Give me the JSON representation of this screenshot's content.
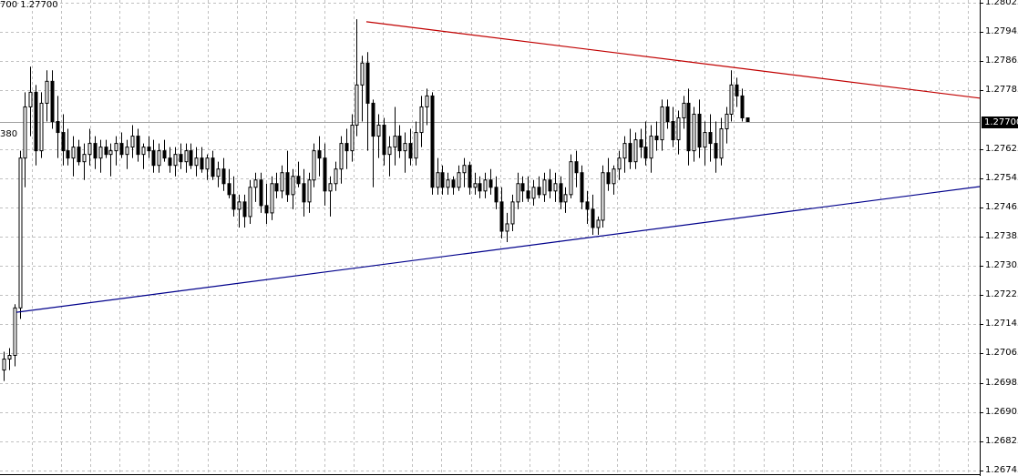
{
  "header": {
    "info_text": "700 1.27700",
    "left_text": "380"
  },
  "chart_data": {
    "type": "candlestick",
    "title": "",
    "xlabel": "",
    "ylabel": "",
    "ylim": [
      1.26745,
      1.28025
    ],
    "grid": true,
    "y_ticks": [
      "1.28025",
      "1.27945",
      "1.27865",
      "1.27785",
      "1.27625",
      "1.27545",
      "1.27465",
      "1.27385",
      "1.27305",
      "1.27225",
      "1.27145",
      "1.27065",
      "1.26985",
      "1.26905",
      "1.26825",
      "1.26745"
    ],
    "current_price": "1.27700",
    "colors": {
      "up_fill": "#ffffff",
      "down_fill": "#000000",
      "outline": "#000000",
      "resistance": "#c00000",
      "support": "#00008b",
      "grid": "#c0c0c0"
    },
    "trendlines": [
      {
        "kind": "resistance",
        "start_price": 1.27973,
        "end_price": 1.27764
      },
      {
        "kind": "support",
        "start_price": 1.27178,
        "end_price": 1.27522
      }
    ],
    "candles_ohlc": [
      [
        1.2702,
        1.2707,
        1.2699,
        1.2705
      ],
      [
        1.2705,
        1.2708,
        1.2702,
        1.2706
      ],
      [
        1.2706,
        1.272,
        1.2703,
        1.2719
      ],
      [
        1.2719,
        1.2762,
        1.2716,
        1.276
      ],
      [
        1.276,
        1.2778,
        1.2752,
        1.2774
      ],
      [
        1.2774,
        1.2785,
        1.2766,
        1.2778
      ],
      [
        1.2778,
        1.278,
        1.2758,
        1.2762
      ],
      [
        1.2762,
        1.2778,
        1.276,
        1.2775
      ],
      [
        1.2775,
        1.2784,
        1.277,
        1.2781
      ],
      [
        1.2781,
        1.2784,
        1.2768,
        1.277
      ],
      [
        1.277,
        1.2777,
        1.276,
        1.2767
      ],
      [
        1.2767,
        1.2772,
        1.2758,
        1.2762
      ],
      [
        1.2762,
        1.2768,
        1.2758,
        1.276
      ],
      [
        1.276,
        1.2766,
        1.2755,
        1.2763
      ],
      [
        1.2763,
        1.2765,
        1.2758,
        1.2759
      ],
      [
        1.2759,
        1.2764,
        1.2754,
        1.2761
      ],
      [
        1.2761,
        1.2768,
        1.2758,
        1.2764
      ],
      [
        1.2764,
        1.2766,
        1.2757,
        1.276
      ],
      [
        1.276,
        1.2765,
        1.2756,
        1.2763
      ],
      [
        1.2763,
        1.2765,
        1.276,
        1.2761
      ],
      [
        1.2761,
        1.2764,
        1.2755,
        1.2762
      ],
      [
        1.2762,
        1.2766,
        1.2758,
        1.2764
      ],
      [
        1.2764,
        1.2767,
        1.276,
        1.2761
      ],
      [
        1.2761,
        1.2765,
        1.2757,
        1.2763
      ],
      [
        1.2763,
        1.2769,
        1.276,
        1.2766
      ],
      [
        1.2766,
        1.2768,
        1.2759,
        1.2761
      ],
      [
        1.2761,
        1.2764,
        1.2757,
        1.2763
      ],
      [
        1.2763,
        1.2766,
        1.276,
        1.2762
      ],
      [
        1.2762,
        1.2765,
        1.2756,
        1.2758
      ],
      [
        1.2758,
        1.2764,
        1.2756,
        1.2762
      ],
      [
        1.2762,
        1.2765,
        1.2759,
        1.276
      ],
      [
        1.276,
        1.2763,
        1.2756,
        1.2758
      ],
      [
        1.2758,
        1.2763,
        1.2755,
        1.2761
      ],
      [
        1.2761,
        1.2764,
        1.2757,
        1.2759
      ],
      [
        1.2759,
        1.2764,
        1.2756,
        1.2762
      ],
      [
        1.2762,
        1.2764,
        1.2757,
        1.2758
      ],
      [
        1.2758,
        1.2763,
        1.2755,
        1.276
      ],
      [
        1.276,
        1.2763,
        1.2756,
        1.2757
      ],
      [
        1.2757,
        1.2761,
        1.2754,
        1.276
      ],
      [
        1.276,
        1.2762,
        1.2754,
        1.2755
      ],
      [
        1.2755,
        1.2759,
        1.2752,
        1.2757
      ],
      [
        1.2757,
        1.276,
        1.2751,
        1.2753
      ],
      [
        1.2753,
        1.2757,
        1.2749,
        1.275
      ],
      [
        1.275,
        1.2755,
        1.2744,
        1.2746
      ],
      [
        1.2746,
        1.275,
        1.2741,
        1.2748
      ],
      [
        1.2748,
        1.275,
        1.2741,
        1.2744
      ],
      [
        1.2744,
        1.2754,
        1.2742,
        1.2752
      ],
      [
        1.2752,
        1.2756,
        1.2748,
        1.2754
      ],
      [
        1.2754,
        1.2756,
        1.2745,
        1.2747
      ],
      [
        1.2747,
        1.2753,
        1.2742,
        1.2745
      ],
      [
        1.2745,
        1.2755,
        1.2743,
        1.2753
      ],
      [
        1.2753,
        1.2756,
        1.2749,
        1.2751
      ],
      [
        1.2751,
        1.2758,
        1.2749,
        1.2756
      ],
      [
        1.2756,
        1.2762,
        1.2748,
        1.275
      ],
      [
        1.275,
        1.2757,
        1.2746,
        1.2755
      ],
      [
        1.2755,
        1.2759,
        1.2752,
        1.2753
      ],
      [
        1.2753,
        1.2757,
        1.2744,
        1.2748
      ],
      [
        1.2748,
        1.2756,
        1.2745,
        1.2754
      ],
      [
        1.2754,
        1.2764,
        1.2752,
        1.2762
      ],
      [
        1.2762,
        1.2766,
        1.2755,
        1.276
      ],
      [
        1.276,
        1.2764,
        1.2747,
        1.2751
      ],
      [
        1.2751,
        1.2755,
        1.2744,
        1.2753
      ],
      [
        1.2753,
        1.2759,
        1.2751,
        1.2757
      ],
      [
        1.2757,
        1.2766,
        1.2753,
        1.2764
      ],
      [
        1.2764,
        1.2768,
        1.2757,
        1.2762
      ],
      [
        1.2762,
        1.2772,
        1.2759,
        1.2769
      ],
      [
        1.2769,
        1.2798,
        1.2766,
        1.278
      ],
      [
        1.278,
        1.2788,
        1.277,
        1.2786
      ],
      [
        1.2786,
        1.2789,
        1.2762,
        1.2775
      ],
      [
        1.2775,
        1.2776,
        1.2752,
        1.2766
      ],
      [
        1.2766,
        1.2772,
        1.276,
        1.2769
      ],
      [
        1.2769,
        1.2771,
        1.2758,
        1.2761
      ],
      [
        1.2761,
        1.2766,
        1.2755,
        1.2763
      ],
      [
        1.2763,
        1.2774,
        1.2758,
        1.2766
      ],
      [
        1.2766,
        1.2769,
        1.276,
        1.2762
      ],
      [
        1.2762,
        1.2767,
        1.2756,
        1.2764
      ],
      [
        1.2764,
        1.2768,
        1.2758,
        1.276
      ],
      [
        1.276,
        1.277,
        1.2758,
        1.2767
      ],
      [
        1.2767,
        1.2777,
        1.2763,
        1.2774
      ],
      [
        1.2774,
        1.2779,
        1.2769,
        1.2777
      ],
      [
        1.2777,
        1.2778,
        1.275,
        1.2752
      ],
      [
        1.2752,
        1.276,
        1.275,
        1.2756
      ],
      [
        1.2756,
        1.2758,
        1.275,
        1.2752
      ],
      [
        1.2752,
        1.2756,
        1.275,
        1.2754
      ],
      [
        1.2754,
        1.2755,
        1.275,
        1.2752
      ],
      [
        1.2752,
        1.2758,
        1.2751,
        1.2756
      ],
      [
        1.2756,
        1.276,
        1.2752,
        1.2758
      ],
      [
        1.2758,
        1.2759,
        1.275,
        1.2752
      ],
      [
        1.2752,
        1.2756,
        1.275,
        1.2753
      ],
      [
        1.2753,
        1.2755,
        1.2749,
        1.2751
      ],
      [
        1.2751,
        1.2756,
        1.2749,
        1.2754
      ],
      [
        1.2754,
        1.2757,
        1.275,
        1.2752
      ],
      [
        1.2752,
        1.2755,
        1.2746,
        1.2748
      ],
      [
        1.2748,
        1.2752,
        1.2738,
        1.274
      ],
      [
        1.274,
        1.2745,
        1.2737,
        1.2742
      ],
      [
        1.2742,
        1.275,
        1.274,
        1.2748
      ],
      [
        1.2748,
        1.2756,
        1.2746,
        1.2753
      ],
      [
        1.2753,
        1.2755,
        1.2748,
        1.2751
      ],
      [
        1.2751,
        1.2755,
        1.2748,
        1.2749
      ],
      [
        1.2749,
        1.2754,
        1.2747,
        1.2752
      ],
      [
        1.2752,
        1.2755,
        1.2749,
        1.275
      ],
      [
        1.275,
        1.2756,
        1.2748,
        1.2754
      ],
      [
        1.2754,
        1.2757,
        1.2749,
        1.2751
      ],
      [
        1.2751,
        1.2756,
        1.2748,
        1.2753
      ],
      [
        1.2753,
        1.2755,
        1.2746,
        1.2748
      ],
      [
        1.2748,
        1.2752,
        1.2745,
        1.275
      ],
      [
        1.275,
        1.2761,
        1.2749,
        1.2759
      ],
      [
        1.2759,
        1.2762,
        1.2752,
        1.2756
      ],
      [
        1.2756,
        1.2758,
        1.2746,
        1.2748
      ],
      [
        1.2748,
        1.2751,
        1.2742,
        1.2746
      ],
      [
        1.2746,
        1.275,
        1.2739,
        1.2741
      ],
      [
        1.2741,
        1.2744,
        1.2739,
        1.2743
      ],
      [
        1.2743,
        1.2758,
        1.2741,
        1.2756
      ],
      [
        1.2756,
        1.276,
        1.2751,
        1.2753
      ],
      [
        1.2753,
        1.2758,
        1.275,
        1.2757
      ],
      [
        1.2757,
        1.2762,
        1.2754,
        1.276
      ],
      [
        1.276,
        1.2766,
        1.2756,
        1.2764
      ],
      [
        1.2764,
        1.2768,
        1.2757,
        1.2759
      ],
      [
        1.2759,
        1.2767,
        1.2757,
        1.2765
      ],
      [
        1.2765,
        1.2768,
        1.276,
        1.2763
      ],
      [
        1.2763,
        1.277,
        1.2758,
        1.276
      ],
      [
        1.276,
        1.2769,
        1.2756,
        1.2766
      ],
      [
        1.2766,
        1.277,
        1.2762,
        1.2765
      ],
      [
        1.2765,
        1.2776,
        1.2762,
        1.2774
      ],
      [
        1.2774,
        1.2776,
        1.2768,
        1.277
      ],
      [
        1.277,
        1.2774,
        1.2763,
        1.2765
      ],
      [
        1.2765,
        1.2773,
        1.2761,
        1.2771
      ],
      [
        1.2771,
        1.2777,
        1.2768,
        1.2775
      ],
      [
        1.2775,
        1.2779,
        1.2758,
        1.2762
      ],
      [
        1.2762,
        1.2774,
        1.2759,
        1.2772
      ],
      [
        1.2772,
        1.2776,
        1.276,
        1.2763
      ],
      [
        1.2763,
        1.277,
        1.2758,
        1.2767
      ],
      [
        1.2767,
        1.2772,
        1.2759,
        1.2764
      ],
      [
        1.2764,
        1.277,
        1.2756,
        1.276
      ],
      [
        1.276,
        1.2771,
        1.2758,
        1.2768
      ],
      [
        1.2768,
        1.2774,
        1.2764,
        1.2772
      ],
      [
        1.2772,
        1.2784,
        1.277,
        1.278
      ],
      [
        1.278,
        1.2782,
        1.2774,
        1.2777
      ],
      [
        1.2777,
        1.2779,
        1.277,
        1.2771
      ],
      [
        1.2771,
        1.2771,
        1.277,
        1.277
      ]
    ]
  }
}
